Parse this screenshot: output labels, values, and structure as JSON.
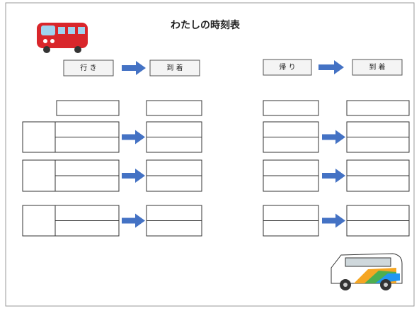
{
  "header": {
    "title": "わたしの時刻表"
  },
  "outbound": {
    "label": "行 き",
    "arrival": "到 着"
  },
  "return": {
    "label": "帰 り",
    "arrival": "到 着"
  }
}
